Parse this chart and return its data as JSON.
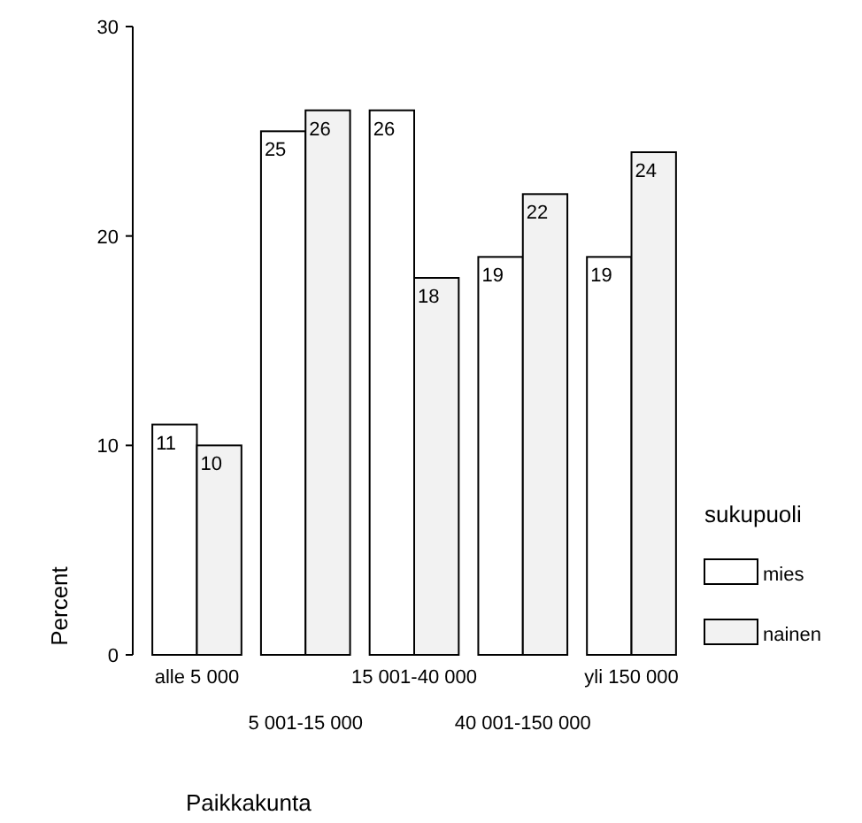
{
  "chart_data": {
    "type": "bar",
    "xlabel": "Paikkakunta",
    "ylabel": "Percent",
    "legend_title": "sukupuoli",
    "categories": [
      "alle 5 000",
      "5 001-15 000",
      "15 001-40 000",
      "40 001-150 000",
      "yli 150 000"
    ],
    "series": [
      {
        "name": "mies",
        "color": "#ffffff",
        "values": [
          11,
          25,
          26,
          19,
          19
        ]
      },
      {
        "name": "nainen",
        "color": "#f2f2f2",
        "values": [
          10,
          26,
          18,
          22,
          24
        ]
      }
    ],
    "ylim": [
      0,
      30
    ],
    "yticks": [
      0,
      10,
      20,
      30
    ],
    "data_labels": true,
    "legend": "right",
    "grid": false
  }
}
